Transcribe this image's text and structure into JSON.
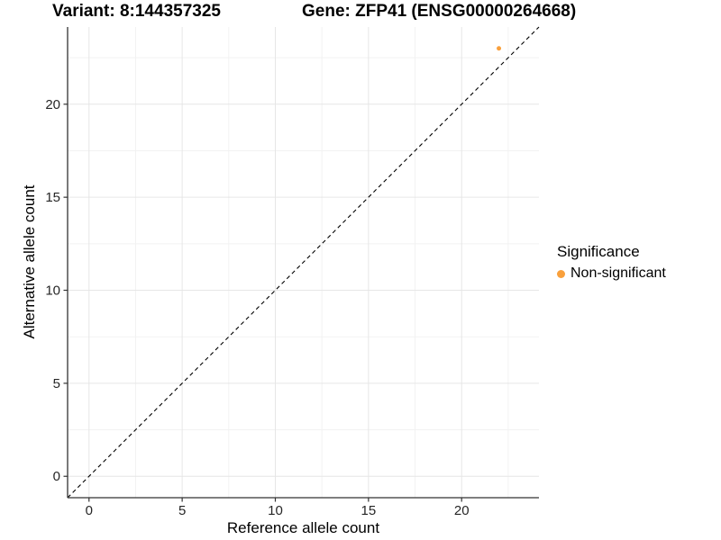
{
  "titles": {
    "variant": "Variant: 8:144357325",
    "gene": "Gene: ZFP41 (ENSG00000264668)"
  },
  "chart_data": {
    "type": "scatter",
    "title_left": "Variant: 8:144357325",
    "title_right": "Gene: ZFP41 (ENSG00000264668)",
    "xlabel": "Reference allele count",
    "ylabel": "Alternative allele count",
    "xlim": [
      -1.15,
      24.15
    ],
    "ylim": [
      -1.15,
      24.15
    ],
    "xticks": [
      0,
      5,
      10,
      15,
      20
    ],
    "yticks": [
      0,
      5,
      10,
      15,
      20
    ],
    "xminor": [
      2.5,
      7.5,
      12.5,
      17.5,
      22.5
    ],
    "yminor": [
      2.5,
      7.5,
      12.5,
      17.5,
      22.5
    ],
    "grid": true,
    "identity_line": {
      "type": "y=x",
      "style": "dashed",
      "color": "#000000"
    },
    "series": [
      {
        "name": "Non-significant",
        "color": "#F9A03C",
        "points": [
          {
            "x": 22,
            "y": 23
          }
        ]
      }
    ],
    "legend": {
      "title": "Significance",
      "position": "right",
      "entries": [
        {
          "label": "Non-significant",
          "color": "#F9A03C"
        }
      ]
    }
  },
  "style": {
    "background": "#FFFFFF",
    "axis_line_color": "#333333",
    "tick_color": "#333333",
    "tick_label_color": "#262626",
    "grid_major_color": "#E6E6E6",
    "grid_minor_color": "#F2F2F2",
    "point_radius": 2.5
  }
}
